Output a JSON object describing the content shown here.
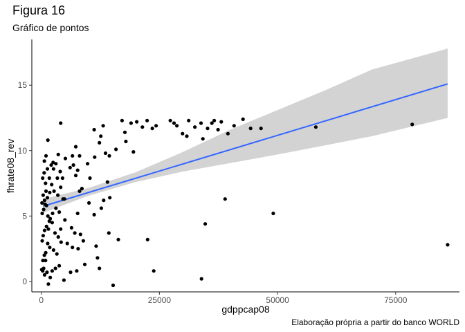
{
  "title": "Figura 16",
  "subtitle": "Gráfico de pontos",
  "caption": "Elaboração própria a partir do banco WORLD",
  "chart_data": {
    "type": "scatter",
    "xlabel": "gdppcap08",
    "ylabel": "fhrate08_rev",
    "xlim": [
      -2000,
      88500
    ],
    "ylim": [
      -0.8,
      18.5
    ],
    "x_ticks": [
      0,
      25000,
      50000,
      75000
    ],
    "x_tick_labels": [
      "0",
      "25000",
      "50000",
      "75000"
    ],
    "y_ticks": [
      0,
      5,
      10,
      15
    ],
    "y_tick_labels": [
      "0",
      "5",
      "10",
      "15"
    ],
    "grid": false,
    "colors": {
      "points": "#000000",
      "fit_line": "#3366FF",
      "confidence_band": "#D3D3D3"
    },
    "regression": {
      "method": "lm",
      "line": [
        [
          400,
          5.75
        ],
        [
          86000,
          15.1
        ]
      ],
      "band": [
        {
          "x": 400,
          "lower": 5.25,
          "upper": 6.3
        },
        {
          "x": 10000,
          "lower": 6.55,
          "upper": 7.15
        },
        {
          "x": 20000,
          "lower": 7.6,
          "upper": 8.35
        },
        {
          "x": 30000,
          "lower": 8.4,
          "upper": 9.9
        },
        {
          "x": 40000,
          "lower": 9.05,
          "upper": 11.6
        },
        {
          "x": 50000,
          "lower": 9.7,
          "upper": 13.1
        },
        {
          "x": 60000,
          "lower": 10.4,
          "upper": 14.6
        },
        {
          "x": 70000,
          "lower": 11.1,
          "upper": 16.2
        },
        {
          "x": 86000,
          "lower": 12.5,
          "upper": 17.8
        }
      ]
    },
    "points": [
      [
        100,
        0.9
      ],
      [
        300,
        0.8
      ],
      [
        500,
        1.0
      ],
      [
        700,
        0.5
      ],
      [
        900,
        1.6
      ],
      [
        1200,
        0.7
      ],
      [
        1500,
        -0.2
      ],
      [
        1900,
        0.3
      ],
      [
        2300,
        0.8
      ],
      [
        3000,
        1.0
      ],
      [
        3800,
        1.2
      ],
      [
        4800,
        0.1
      ],
      [
        6200,
        0.7
      ],
      [
        7500,
        0.8
      ],
      [
        9200,
        1.3
      ],
      [
        12300,
        1.0
      ],
      [
        15200,
        -0.3
      ],
      [
        23800,
        0.8
      ],
      [
        33900,
        0.2
      ],
      [
        350,
        1.6
      ],
      [
        650,
        2.0
      ],
      [
        950,
        2.2
      ],
      [
        1350,
        2.9
      ],
      [
        1800,
        2.6
      ],
      [
        2600,
        2.4
      ],
      [
        3300,
        2.1
      ],
      [
        4200,
        3.0
      ],
      [
        5500,
        2.9
      ],
      [
        6600,
        2.6
      ],
      [
        7800,
        2.5
      ],
      [
        8900,
        3.1
      ],
      [
        11600,
        2.7
      ],
      [
        11900,
        1.8
      ],
      [
        14300,
        3.7
      ],
      [
        16300,
        3.2
      ],
      [
        22500,
        3.2
      ],
      [
        200,
        3.1
      ],
      [
        400,
        3.5
      ],
      [
        700,
        3.9
      ],
      [
        1100,
        4.2
      ],
      [
        1500,
        4.0
      ],
      [
        1700,
        4.6
      ],
      [
        2300,
        4.5
      ],
      [
        2900,
        3.7
      ],
      [
        3600,
        3.4
      ],
      [
        4100,
        4.0
      ],
      [
        5000,
        4.7
      ],
      [
        6400,
        4.1
      ],
      [
        7100,
        3.7
      ],
      [
        8300,
        3.6
      ],
      [
        34700,
        4.4
      ],
      [
        200,
        5.2
      ],
      [
        500,
        5.5
      ],
      [
        800,
        5.9
      ],
      [
        1100,
        5.8
      ],
      [
        1400,
        5.0
      ],
      [
        1900,
        4.8
      ],
      [
        2400,
        5.2
      ],
      [
        3100,
        5.6
      ],
      [
        3800,
        5.3
      ],
      [
        4900,
        6.3
      ],
      [
        7700,
        5.2
      ],
      [
        11200,
        5.1
      ],
      [
        12700,
        5.6
      ],
      [
        38900,
        6.3
      ],
      [
        49100,
        5.2
      ],
      [
        86000,
        2.8
      ],
      [
        150,
        6.0
      ],
      [
        400,
        6.6
      ],
      [
        700,
        6.2
      ],
      [
        1000,
        6.9
      ],
      [
        1300,
        6.4
      ],
      [
        1800,
        6.8
      ],
      [
        2200,
        7.4
      ],
      [
        2700,
        6.9
      ],
      [
        3500,
        6.6
      ],
      [
        4100,
        7.2
      ],
      [
        4600,
        6.3
      ],
      [
        8100,
        6.9
      ],
      [
        10100,
        6.0
      ],
      [
        13200,
        6.2
      ],
      [
        14500,
        6.4
      ],
      [
        300,
        7.9
      ],
      [
        600,
        8.3
      ],
      [
        900,
        7.5
      ],
      [
        1300,
        8.6
      ],
      [
        1700,
        7.9
      ],
      [
        2100,
        8.9
      ],
      [
        2600,
        8.6
      ],
      [
        3100,
        9.0
      ],
      [
        3400,
        7.9
      ],
      [
        4000,
        8.4
      ],
      [
        4500,
        7.9
      ],
      [
        6100,
        8.7
      ],
      [
        6800,
        8.9
      ],
      [
        7300,
        8.1
      ],
      [
        7700,
        8.5
      ],
      [
        8600,
        7.1
      ],
      [
        10300,
        7.9
      ],
      [
        14000,
        7.6
      ],
      [
        650,
        9.2
      ],
      [
        1000,
        9.6
      ],
      [
        1400,
        10.8
      ],
      [
        2500,
        9.1
      ],
      [
        3600,
        9.7
      ],
      [
        5100,
        9.4
      ],
      [
        6600,
        9.6
      ],
      [
        7300,
        10.3
      ],
      [
        8100,
        9.6
      ],
      [
        9800,
        9.0
      ],
      [
        11300,
        9.5
      ],
      [
        12300,
        10.6
      ],
      [
        13600,
        9.8
      ],
      [
        14400,
        9.6
      ],
      [
        15800,
        10.1
      ],
      [
        17900,
        10.7
      ],
      [
        19500,
        9.9
      ],
      [
        4100,
        12.1
      ],
      [
        11200,
        11.6
      ],
      [
        12600,
        11.1
      ],
      [
        13100,
        11.9
      ],
      [
        17100,
        12.3
      ],
      [
        17700,
        11.4
      ],
      [
        19000,
        12.1
      ],
      [
        20200,
        12.2
      ],
      [
        21400,
        11.8
      ],
      [
        22400,
        12.3
      ],
      [
        23500,
        11.7
      ],
      [
        24300,
        11.9
      ],
      [
        27300,
        12.3
      ],
      [
        28100,
        12.1
      ],
      [
        28700,
        11.9
      ],
      [
        29900,
        11.3
      ],
      [
        30800,
        11.1
      ],
      [
        31200,
        12.3
      ],
      [
        32500,
        11.8
      ],
      [
        33800,
        12.1
      ],
      [
        34200,
        10.9
      ],
      [
        35200,
        11.7
      ],
      [
        36100,
        12.1
      ],
      [
        36600,
        12.3
      ],
      [
        37400,
        11.6
      ],
      [
        38100,
        12.2
      ],
      [
        39500,
        11.3
      ],
      [
        40800,
        11.9
      ],
      [
        42700,
        12.4
      ],
      [
        44300,
        11.7
      ],
      [
        46500,
        11.7
      ],
      [
        58100,
        11.8
      ],
      [
        78500,
        12.0
      ]
    ]
  }
}
